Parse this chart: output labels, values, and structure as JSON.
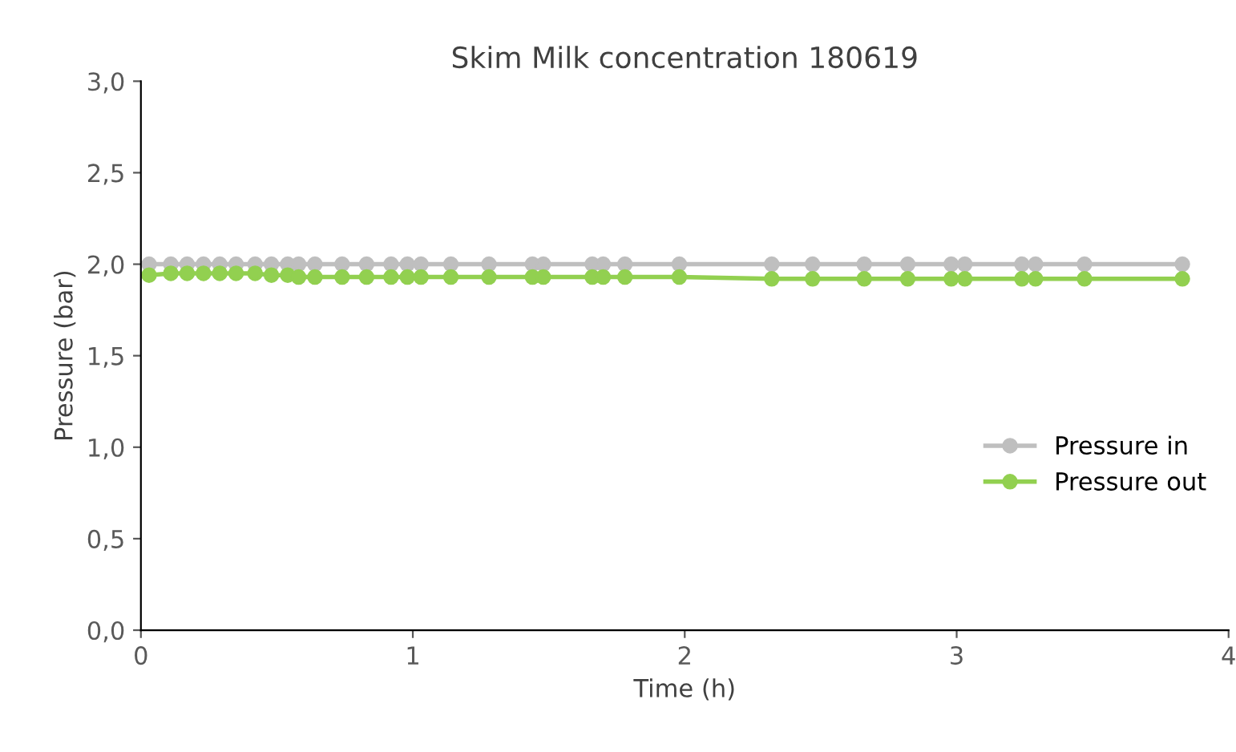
{
  "chart_data": {
    "type": "line",
    "title": "Skim Milk concentration 180619",
    "xlabel": "Time (h)",
    "ylabel": "Pressure (bar)",
    "xlim": [
      0,
      4
    ],
    "xticks": [
      0,
      1,
      2,
      3,
      4
    ],
    "ylim": [
      0,
      3
    ],
    "yticks": [
      {
        "value": 0,
        "label": "0,0"
      },
      {
        "value": 0.5,
        "label": "0,5"
      },
      {
        "value": 1,
        "label": "1,0"
      },
      {
        "value": 1.5,
        "label": "1,5"
      },
      {
        "value": 2,
        "label": "2,0"
      },
      {
        "value": 2.5,
        "label": "2,5"
      },
      {
        "value": 3,
        "label": "3,0"
      }
    ],
    "marker": "circle",
    "line_style": "solid",
    "grid": false,
    "legend": "right",
    "series": [
      {
        "name": "Pressure in",
        "color": "#bfbfbf",
        "x": [
          0.03,
          0.11,
          0.17,
          0.23,
          0.29,
          0.35,
          0.42,
          0.48,
          0.54,
          0.58,
          0.64,
          0.74,
          0.83,
          0.92,
          0.98,
          1.03,
          1.14,
          1.28,
          1.44,
          1.48,
          1.66,
          1.7,
          1.78,
          1.98,
          2.32,
          2.47,
          2.66,
          2.82,
          2.98,
          3.03,
          3.24,
          3.29,
          3.47,
          3.83
        ],
        "values": [
          2,
          2,
          2,
          2,
          2,
          2,
          2,
          2,
          2,
          2,
          2,
          2,
          2,
          2,
          2,
          2,
          2,
          2,
          2,
          2,
          2,
          2,
          2,
          2,
          2,
          2,
          2,
          2,
          2,
          2,
          2,
          2,
          2,
          2
        ]
      },
      {
        "name": "Pressure out",
        "color": "#92d050",
        "x": [
          0.03,
          0.11,
          0.17,
          0.23,
          0.29,
          0.35,
          0.42,
          0.48,
          0.54,
          0.58,
          0.64,
          0.74,
          0.83,
          0.92,
          0.98,
          1.03,
          1.14,
          1.28,
          1.44,
          1.48,
          1.66,
          1.7,
          1.78,
          1.98,
          2.32,
          2.47,
          2.66,
          2.82,
          2.98,
          3.03,
          3.24,
          3.29,
          3.47,
          3.83
        ],
        "values": [
          1.94,
          1.95,
          1.95,
          1.95,
          1.95,
          1.95,
          1.95,
          1.94,
          1.94,
          1.93,
          1.93,
          1.93,
          1.93,
          1.93,
          1.93,
          1.93,
          1.93,
          1.93,
          1.93,
          1.93,
          1.93,
          1.93,
          1.93,
          1.93,
          1.92,
          1.92,
          1.92,
          1.92,
          1.92,
          1.92,
          1.92,
          1.92,
          1.92,
          1.92
        ]
      }
    ]
  }
}
